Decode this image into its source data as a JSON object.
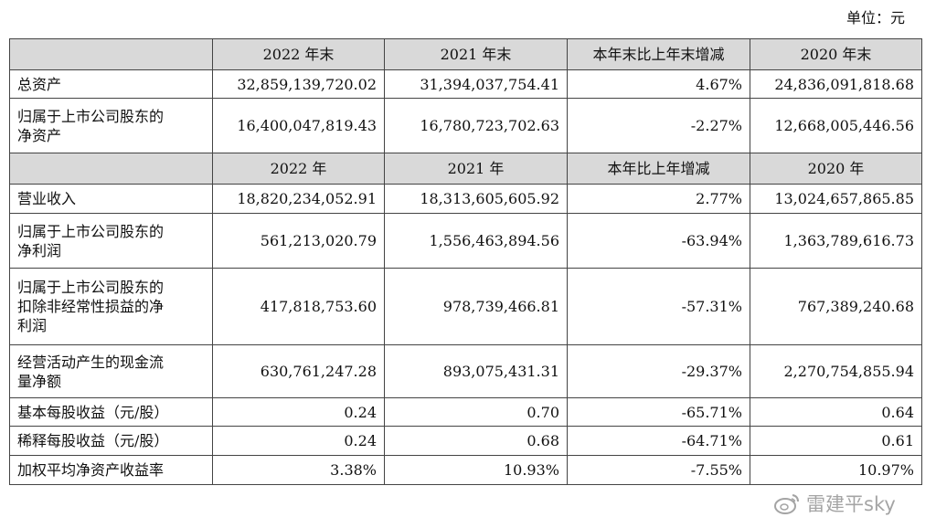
{
  "unit": "单位：元",
  "section1_headers": [
    "2022 年末",
    "2021 年末",
    "本年末比上年末增减",
    "2020 年末"
  ],
  "section2_headers": [
    "2022 年",
    "2021 年",
    "本年比上年增减",
    "2020 年"
  ],
  "rows": [
    {
      "label": [
        "总资产"
      ],
      "values": [
        "32,859,139,720.02",
        "31,394,037,754.41",
        "4.67%",
        "24,836,091,818.68"
      ]
    },
    {
      "label": [
        "归属于上市公司股东的",
        "净资产"
      ],
      "values": [
        "16,400,047,819.43",
        "16,780,723,702.63",
        "-2.27%",
        "12,668,005,446.56"
      ]
    },
    {
      "label": [
        "营业收入"
      ],
      "values": [
        "18,820,234,052.91",
        "18,313,605,605.92",
        "2.77%",
        "13,024,657,865.85"
      ]
    },
    {
      "label": [
        "归属于上市公司股东的",
        "净利润"
      ],
      "values": [
        "561,213,020.79",
        "1,556,463,894.56",
        "-63.94%",
        "1,363,789,616.73"
      ]
    },
    {
      "label": [
        "归属于上市公司股东的",
        "扣除非经常性损益的净",
        "利润"
      ],
      "values": [
        "417,818,753.60",
        "978,739,466.81",
        "-57.31%",
        "767,389,240.68"
      ]
    },
    {
      "label": [
        "经营活动产生的现金流",
        "量净额"
      ],
      "values": [
        "630,761,247.28",
        "893,075,431.31",
        "-29.37%",
        "2,270,754,855.94"
      ]
    },
    {
      "label": [
        "基本每股收益（元/股）"
      ],
      "values": [
        "0.24",
        "0.70",
        "-65.71%",
        "0.64"
      ]
    },
    {
      "label": [
        "稀释每股收益（元/股）"
      ],
      "values": [
        "0.24",
        "0.68",
        "-64.71%",
        "0.61"
      ]
    },
    {
      "label": [
        "加权平均净资产收益率"
      ],
      "values": [
        "3.38%",
        "10.93%",
        "-7.55%",
        "10.97%"
      ]
    }
  ],
  "watermark": "雷建平sky"
}
